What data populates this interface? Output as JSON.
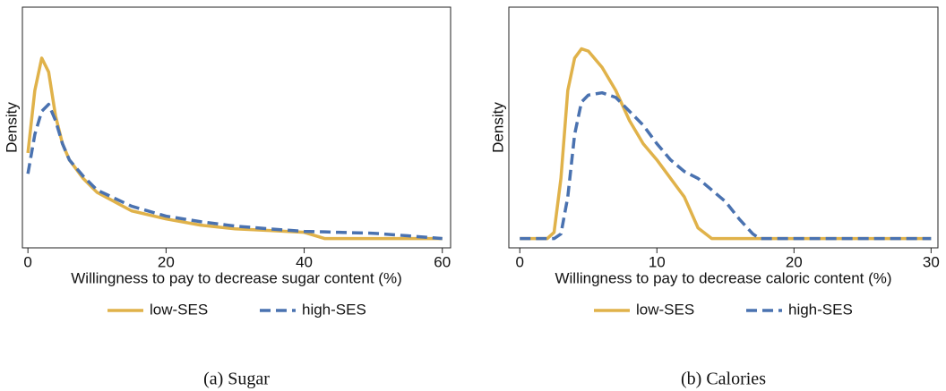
{
  "chart_data": [
    {
      "type": "line",
      "y_label": "Density",
      "x_label": "Willingness to pay to decrease sugar content (%)",
      "caption": "(a)  Sugar",
      "x": [
        0,
        1,
        2,
        3,
        4,
        5,
        6,
        8,
        10,
        15,
        20,
        25,
        30,
        35,
        40,
        43,
        45,
        50,
        55,
        60
      ],
      "series": [
        {
          "name": "low-SES",
          "color": "#e0b24a",
          "dashed": false,
          "values": [
            0.37,
            0.64,
            0.78,
            0.72,
            0.53,
            0.41,
            0.34,
            0.26,
            0.2,
            0.12,
            0.085,
            0.058,
            0.042,
            0.035,
            0.027,
            0,
            0,
            0,
            0,
            0
          ]
        },
        {
          "name": "high-SES",
          "color": "#4a72b0",
          "dashed": true,
          "values": [
            0.28,
            0.45,
            0.55,
            0.58,
            0.51,
            0.41,
            0.34,
            0.27,
            0.21,
            0.14,
            0.097,
            0.073,
            0.054,
            0.042,
            0.031,
            0.029,
            0.027,
            0.023,
            0.012,
            0
          ]
        }
      ],
      "xlim": [
        -0.8,
        61.2
      ],
      "xticks": [
        0,
        20,
        40,
        60
      ],
      "ylim": [
        -0.04,
        1
      ]
    },
    {
      "type": "line",
      "y_label": "Density",
      "x_label": "Willingness to pay to decrease caloric content (%)",
      "caption": "(b)  Calories",
      "x": [
        0,
        2,
        2.5,
        3,
        3.5,
        4,
        4.5,
        5,
        6,
        7,
        8,
        9,
        10,
        11,
        12,
        13,
        14,
        15,
        16,
        17,
        17.5,
        30
      ],
      "series": [
        {
          "name": "low-SES",
          "color": "#e0b24a",
          "dashed": false,
          "values": [
            0,
            0,
            0.027,
            0.26,
            0.64,
            0.78,
            0.82,
            0.81,
            0.74,
            0.64,
            0.51,
            0.41,
            0.34,
            0.26,
            0.18,
            0.046,
            0,
            0,
            0,
            0,
            0,
            0
          ]
        },
        {
          "name": "high-SES",
          "color": "#4a72b0",
          "dashed": true,
          "values": [
            0,
            0,
            0,
            0.02,
            0.18,
            0.45,
            0.59,
            0.62,
            0.63,
            0.61,
            0.55,
            0.49,
            0.41,
            0.34,
            0.29,
            0.26,
            0.21,
            0.16,
            0.085,
            0.02,
            0,
            0
          ]
        }
      ],
      "xlim": [
        -0.8,
        30.5
      ],
      "xticks": [
        0,
        10,
        20,
        30
      ],
      "ylim": [
        -0.04,
        1
      ]
    }
  ]
}
